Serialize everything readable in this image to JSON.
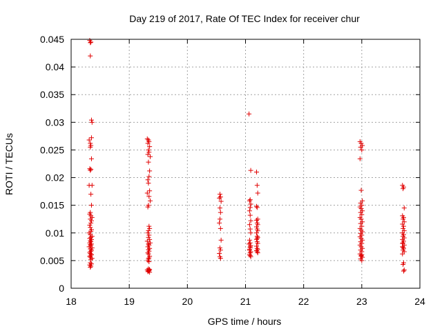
{
  "chart_data": {
    "type": "scatter",
    "title": "Day 219 of 2017, Rate Of TEC Index for receiver chur",
    "xlabel": "GPS time / hours",
    "ylabel": "ROTI / TECUs",
    "xlim": [
      18,
      24
    ],
    "ylim": [
      0,
      0.045
    ],
    "xticks": [
      18,
      19,
      20,
      21,
      22,
      23,
      24
    ],
    "xtick_labels": [
      "18",
      "19",
      "20",
      "21",
      "22",
      "23",
      "24"
    ],
    "yticks": [
      0,
      0.005,
      0.01,
      0.015,
      0.02,
      0.025,
      0.03,
      0.035,
      0.04,
      0.045
    ],
    "ytick_labels": [
      "0",
      "0.005",
      "0.01",
      "0.015",
      "0.02",
      "0.025",
      "0.03",
      "0.035",
      "0.04",
      "0.045"
    ],
    "grid": true,
    "marker": "+",
    "marker_color": "#e00000",
    "series": [
      {
        "name": "ROTI",
        "x": [
          18.32,
          18.33,
          18.34,
          18.33,
          18.35,
          18.36,
          18.35,
          18.31,
          18.33,
          18.34,
          18.33,
          18.35,
          18.32,
          18.34,
          18.33,
          18.31,
          18.36,
          18.34,
          18.35,
          18.33,
          18.32,
          18.34,
          18.36,
          18.33,
          18.35,
          18.34,
          18.32,
          18.33,
          18.35,
          18.34,
          18.31,
          18.33,
          18.36,
          18.34,
          18.32,
          18.35,
          18.33,
          18.34,
          18.32,
          18.35,
          18.33,
          18.34,
          18.31,
          18.36,
          18.33,
          18.35,
          18.34,
          18.32,
          18.33,
          18.35,
          18.34,
          18.32,
          18.33,
          18.36,
          18.34,
          18.33,
          18.35,
          18.32,
          18.34,
          18.33,
          19.31,
          19.33,
          19.34,
          19.32,
          19.35,
          19.33,
          19.34,
          19.32,
          19.36,
          19.33,
          19.35,
          19.34,
          19.32,
          19.33,
          19.35,
          19.31,
          19.34,
          19.36,
          19.33,
          19.32,
          19.34,
          19.35,
          19.33,
          19.32,
          19.34,
          19.33,
          19.35,
          19.31,
          19.36,
          19.33,
          19.34,
          19.32,
          19.35,
          19.33,
          19.34,
          19.32,
          19.33,
          19.35,
          19.34,
          19.33,
          19.32,
          19.34,
          19.33,
          19.35,
          19.31,
          19.34,
          19.33,
          19.32,
          19.35,
          19.34,
          20.56,
          20.57,
          20.55,
          20.58,
          20.56,
          20.57,
          20.56,
          20.55,
          20.57,
          20.58,
          20.56,
          20.57,
          20.55,
          20.56,
          20.57,
          21.06,
          21.09,
          21.08,
          21.07,
          21.09,
          21.08,
          21.07,
          21.08,
          21.09,
          21.07,
          21.08,
          21.09,
          21.07,
          21.08,
          21.06,
          21.09,
          21.08,
          21.07,
          21.09,
          21.08,
          21.07,
          21.08,
          21.09,
          21.07,
          21.08,
          21.19,
          21.2,
          21.21,
          21.19,
          21.2,
          21.21,
          21.19,
          21.2,
          21.21,
          21.19,
          21.2,
          21.21,
          21.19,
          21.2,
          21.21,
          21.19,
          21.2,
          21.21,
          21.19,
          21.2,
          21.21,
          21.19,
          21.2,
          21.21,
          21.2,
          22.97,
          22.99,
          23.01,
          22.98,
          23.0,
          22.97,
          22.99,
          23.01,
          22.98,
          23.0,
          22.97,
          22.99,
          23.01,
          22.98,
          23.0,
          22.97,
          22.99,
          23.01,
          22.98,
          23.0,
          22.97,
          22.99,
          23.01,
          22.98,
          23.0,
          22.97,
          22.99,
          23.01,
          22.98,
          23.0,
          22.97,
          22.99,
          23.01,
          22.98,
          23.0,
          22.97,
          22.99,
          23.01,
          22.98,
          23.0,
          22.99,
          23.0,
          23.7,
          23.72,
          23.71,
          23.73,
          23.7,
          23.72,
          23.71,
          23.73,
          23.7,
          23.72,
          23.71,
          23.73,
          23.7,
          23.72,
          23.71,
          23.73,
          23.7,
          23.72,
          23.71,
          23.73,
          23.7,
          23.72,
          23.71,
          23.73,
          23.7,
          23.72,
          23.71,
          23.73,
          23.72,
          23.71,
          23.7
        ],
        "y": [
          0.0448,
          0.0444,
          0.0445,
          0.042,
          0.0304,
          0.03,
          0.0272,
          0.0268,
          0.0262,
          0.0258,
          0.0255,
          0.0234,
          0.0216,
          0.0215,
          0.0213,
          0.0186,
          0.0186,
          0.017,
          0.015,
          0.0137,
          0.0134,
          0.0131,
          0.0128,
          0.0125,
          0.0122,
          0.0118,
          0.0114,
          0.011,
          0.0106,
          0.0103,
          0.01,
          0.0097,
          0.0094,
          0.0092,
          0.009,
          0.0088,
          0.0086,
          0.0084,
          0.0082,
          0.008,
          0.0079,
          0.0077,
          0.0075,
          0.0073,
          0.0071,
          0.0069,
          0.0067,
          0.0065,
          0.0063,
          0.0061,
          0.006,
          0.0058,
          0.0056,
          0.0054,
          0.0052,
          0.0046,
          0.0044,
          0.0042,
          0.004,
          0.0038,
          0.027,
          0.0268,
          0.0265,
          0.0262,
          0.0256,
          0.025,
          0.0246,
          0.0242,
          0.0238,
          0.0228,
          0.0212,
          0.0202,
          0.0196,
          0.019,
          0.0176,
          0.0172,
          0.0166,
          0.0158,
          0.015,
          0.0147,
          0.0112,
          0.0108,
          0.0104,
          0.01,
          0.0096,
          0.0092,
          0.0088,
          0.0085,
          0.0082,
          0.008,
          0.0078,
          0.0075,
          0.0072,
          0.007,
          0.0067,
          0.0064,
          0.0062,
          0.0058,
          0.0055,
          0.0053,
          0.005,
          0.0048,
          0.0035,
          0.0034,
          0.0033,
          0.0032,
          0.0031,
          0.003,
          0.0029,
          0.0033,
          0.017,
          0.0165,
          0.0163,
          0.0157,
          0.0145,
          0.0137,
          0.0125,
          0.0118,
          0.0108,
          0.0087,
          0.0073,
          0.0069,
          0.0063,
          0.0057,
          0.0054,
          0.0315,
          0.0213,
          0.016,
          0.0158,
          0.0152,
          0.0146,
          0.014,
          0.0132,
          0.0122,
          0.0115,
          0.0107,
          0.01,
          0.0087,
          0.0082,
          0.008,
          0.0077,
          0.0073,
          0.0069,
          0.0066,
          0.0064,
          0.0061,
          0.0059,
          0.0057,
          0.007,
          0.0075,
          0.021,
          0.0186,
          0.0172,
          0.0148,
          0.0146,
          0.0125,
          0.0123,
          0.0118,
          0.0115,
          0.0111,
          0.0107,
          0.0104,
          0.01,
          0.0094,
          0.0092,
          0.0088,
          0.0084,
          0.0081,
          0.0076,
          0.0072,
          0.007,
          0.0068,
          0.0066,
          0.0064,
          0.009,
          0.0265,
          0.0262,
          0.0258,
          0.0255,
          0.025,
          0.0234,
          0.0177,
          0.0158,
          0.0154,
          0.015,
          0.0147,
          0.0144,
          0.014,
          0.0137,
          0.0133,
          0.0128,
          0.0125,
          0.012,
          0.0117,
          0.0112,
          0.0108,
          0.0105,
          0.0102,
          0.0099,
          0.0096,
          0.0093,
          0.009,
          0.0087,
          0.0084,
          0.0081,
          0.0078,
          0.0075,
          0.0072,
          0.0069,
          0.0066,
          0.0062,
          0.0059,
          0.0056,
          0.0053,
          0.005,
          0.0058,
          0.0061,
          0.0186,
          0.0183,
          0.018,
          0.0145,
          0.0131,
          0.0128,
          0.0125,
          0.012,
          0.0116,
          0.0112,
          0.0108,
          0.0104,
          0.01,
          0.0097,
          0.0094,
          0.0091,
          0.0088,
          0.0085,
          0.0082,
          0.0078,
          0.0075,
          0.0072,
          0.0069,
          0.0066,
          0.0062,
          0.0046,
          0.0043,
          0.0033,
          0.0031,
          0.0074,
          0.0081
        ]
      }
    ]
  }
}
